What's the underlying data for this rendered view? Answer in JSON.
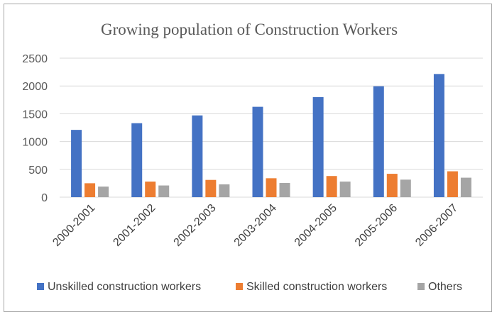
{
  "chart_data": {
    "type": "bar",
    "title": "Growing population of Construction Workers",
    "xlabel": "",
    "ylabel": "",
    "categories": [
      "2000-2001",
      "2001-2002",
      "2002-2003",
      "2003-2004",
      "2004-2005",
      "2005-2006",
      "2006-2007"
    ],
    "series": [
      {
        "name": "Unskilled construction workers",
        "color": "#4472c4",
        "values": [
          1210,
          1330,
          1470,
          1625,
          1800,
          1995,
          2215
        ]
      },
      {
        "name": "Skilled construction workers",
        "color": "#ed7d31",
        "values": [
          250,
          280,
          310,
          340,
          380,
          420,
          465
        ]
      },
      {
        "name": "Others",
        "color": "#a5a5a5",
        "values": [
          190,
          210,
          230,
          255,
          280,
          315,
          350
        ]
      }
    ],
    "yticks": [
      "0",
      "500",
      "1000",
      "1500",
      "2000",
      "2500"
    ],
    "ylim": [
      0,
      2500
    ],
    "grid": true,
    "legend_position": "bottom"
  }
}
